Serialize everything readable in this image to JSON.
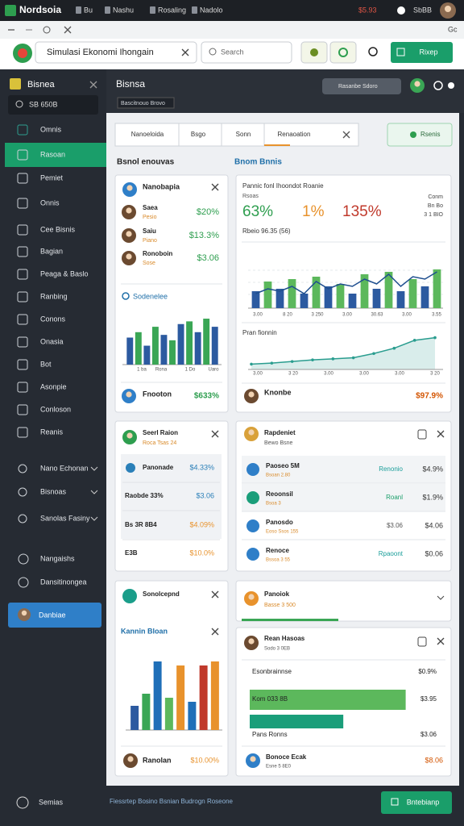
{
  "os_bar": {
    "app": "Nordsoia",
    "tabs": [
      "Bu",
      "Nashu",
      "Rosaling",
      "Nadolo"
    ],
    "price": "$5.93",
    "user": "SbBB"
  },
  "browser": {
    "right": "Gc"
  },
  "header": {
    "search": "Simulasi Ekonomi Ihongain",
    "search2": "Search",
    "button": "Rixep"
  },
  "sidebar": {
    "title": "Bisnea",
    "search": "SB 650B",
    "items": [
      "Omnis",
      "Rasoan",
      "Pemiet",
      "Onnis",
      "Cee Bisnis",
      "Bagian",
      "Peaga & Baslo",
      "Ranbing",
      "Conons",
      "Onasia",
      "Bot",
      "Asonpie",
      "Conloson",
      "Reanis"
    ],
    "active": 1,
    "groups": [
      "Nano Echonan",
      "Bisnoas",
      "Sanolas Fasiny"
    ],
    "extras": [
      "Nangaishs",
      "Dansitinongea"
    ],
    "button": "Danbiae",
    "footer": "Semias"
  },
  "topbar": {
    "title": "Bisnsa",
    "subtitle": "Bascitnouo Brovo",
    "search": "Rasanbe Sdoro"
  },
  "tabs": {
    "items": [
      "Nanoeloida",
      "Bsgo",
      "Sonn",
      "Renaoation"
    ],
    "active": 3,
    "button": "Rsenis"
  },
  "sections": [
    "Bsnol enouvas",
    "Bnom Bnnis"
  ],
  "card_people": {
    "title": "Nanobapia",
    "rows": [
      {
        "name": "Saea",
        "sub": "Pesio",
        "value": "$20%"
      },
      {
        "name": "Saiu",
        "sub": "Piano",
        "value": "$13.3%"
      },
      {
        "name": "Ronoboin",
        "sub": "Sose",
        "value": "$3.06"
      }
    ],
    "chart_title": "Sodenelee",
    "chart": {
      "values": [
        50,
        60,
        35,
        70,
        55,
        45,
        75,
        80,
        60,
        85,
        70
      ],
      "colors": [
        "#2c5aa0",
        "#3aa655"
      ],
      "ylim": [
        0,
        100
      ]
    },
    "x_labels": [
      "1 ba",
      "Rona",
      "1 Do",
      "Uaro"
    ],
    "footer": {
      "name": "Fnooton",
      "value": "$633%"
    }
  },
  "card_stats": {
    "title": "Pannic fonl Ihoondot Roanie",
    "subtitle": "Rsoas",
    "stats": [
      {
        "value": "63%",
        "color": "#2e9e4f"
      },
      {
        "value": "1%",
        "color": "#e8922c"
      },
      {
        "value": "135%",
        "color": "#c0392b"
      }
    ],
    "legend": [
      "Conm",
      "Bn Bo",
      "3 1 BIO"
    ],
    "chart_title": "Rbeio 96.35 (56)",
    "chart": {
      "bar_values": [
        35,
        55,
        40,
        60,
        30,
        65,
        45,
        50,
        30,
        70,
        40,
        75,
        35,
        60,
        45,
        80
      ],
      "bar_colors": [
        "#2c5aa0",
        "#5cb85c"
      ],
      "line_values": [
        30,
        40,
        35,
        45,
        30,
        55,
        40,
        50,
        45,
        60,
        50,
        70,
        45,
        65,
        60,
        75
      ],
      "line_color": "#1f4f8f",
      "ylim": [
        0,
        100
      ]
    },
    "x_labels": [
      "3.00",
      "8 20",
      "3 250",
      "3.00",
      "30.63",
      "3.00",
      "3.55"
    ],
    "area_title": "Pran fionnin",
    "area": {
      "values": [
        10,
        12,
        15,
        18,
        20,
        22,
        30,
        40,
        55,
        60
      ],
      "color": "#2a9d8f",
      "ylim": [
        0,
        70
      ]
    },
    "area_labels": [
      "3.00",
      "3 20",
      "3.00",
      "3.00",
      "3.00",
      "3 20"
    ],
    "footer": {
      "name": "Knonbe",
      "value": "$97.9%"
    }
  },
  "card_table": {
    "title": "Seerl Raion",
    "subtitle": "Roca Tsas 24",
    "rows": [
      [
        "Panonade",
        "$4.33%"
      ],
      [
        "Raobde 33%",
        "$3.06"
      ],
      [
        "Bs 3R 8B4",
        "$4.09%"
      ],
      [
        "E3B",
        "$10.0%"
      ]
    ]
  },
  "card_list": {
    "title": "Rapdeniet",
    "subtitle": "Bewo Bsne",
    "rows": [
      {
        "name": "Paoseo 5M",
        "sub": "Bsoan 2.80",
        "tag": "Renonio",
        "value": "$4.9%"
      },
      {
        "name": "Reoonsil",
        "sub": "Bsoa 3",
        "tag": "Roanl",
        "value": "$1.9%"
      },
      {
        "name": "Panosdo",
        "sub": "Eoso Ssos 155",
        "tag": "$3.06",
        "value": "$4.06"
      },
      {
        "name": "Renoce",
        "sub": "Bssoa 3 55",
        "tag": "Rpaoont",
        "value": "$0.06"
      }
    ]
  },
  "card_bars": {
    "title": "Sonolcepnd",
    "chart_title": "Kannin Bloan",
    "chart": {
      "values": [
        30,
        45,
        85,
        40,
        80,
        35,
        80,
        85
      ],
      "colors": [
        "#2c5aa0",
        "#3aa655",
        "#1f6fb8",
        "#5cb85c",
        "#e8922c",
        "#1f6fb8",
        "#c0392b",
        "#e8922c"
      ],
      "ylim": [
        0,
        100
      ]
    },
    "footer": {
      "name": "Ranolan",
      "value": "$10.00%"
    }
  },
  "card_note": {
    "title": "Panoiok",
    "subtitle": "Basse 3 500"
  },
  "card_hbars": {
    "title": "Rean Hasoas",
    "subtitle": "Sodo 3 0EB",
    "rows": [
      {
        "label": "Esonbrainnse",
        "value": "$0.9%"
      },
      {
        "label": "Kom 033 8B",
        "value": "$3.95"
      },
      {
        "label": "Pans Ronns",
        "value": "$3.06"
      }
    ],
    "bars": {
      "values": [
        80,
        48
      ],
      "colors": [
        "#5cb85c",
        "#1a9e7a"
      ],
      "xlim": [
        0,
        100
      ]
    },
    "footer": {
      "name": "Bonoce Ecak",
      "sub": "Esne 5 8E0",
      "value": "$8.06"
    }
  },
  "footer": {
    "text": "Fiessrtep Bosino Bsnian Budrogn Roseone",
    "button": "Bntebianp"
  }
}
